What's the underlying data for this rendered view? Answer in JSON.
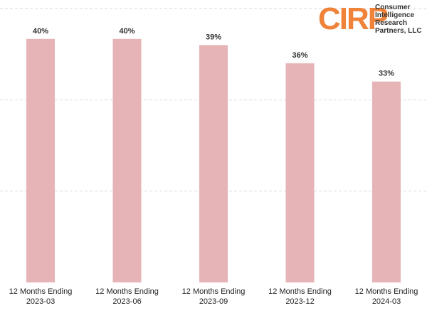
{
  "chart_data": {
    "type": "bar",
    "categories": [
      "12 Months Ending\n2023-03",
      "12 Months Ending\n2023-06",
      "12 Months Ending\n2023-09",
      "12 Months Ending\n2023-12",
      "12 Months Ending\n2024-03"
    ],
    "values": [
      40,
      40,
      39,
      36,
      33
    ],
    "value_labels": [
      "40%",
      "40%",
      "39%",
      "36%",
      "33%"
    ],
    "color": "#e6b3b6",
    "ylim": [
      0,
      45
    ],
    "yticks": [
      0,
      15,
      30,
      45
    ],
    "grid": true
  },
  "logo": {
    "mark": "CIRP",
    "text": "Consumer\nIntelligence\nResearch\nPartners, LLC"
  }
}
